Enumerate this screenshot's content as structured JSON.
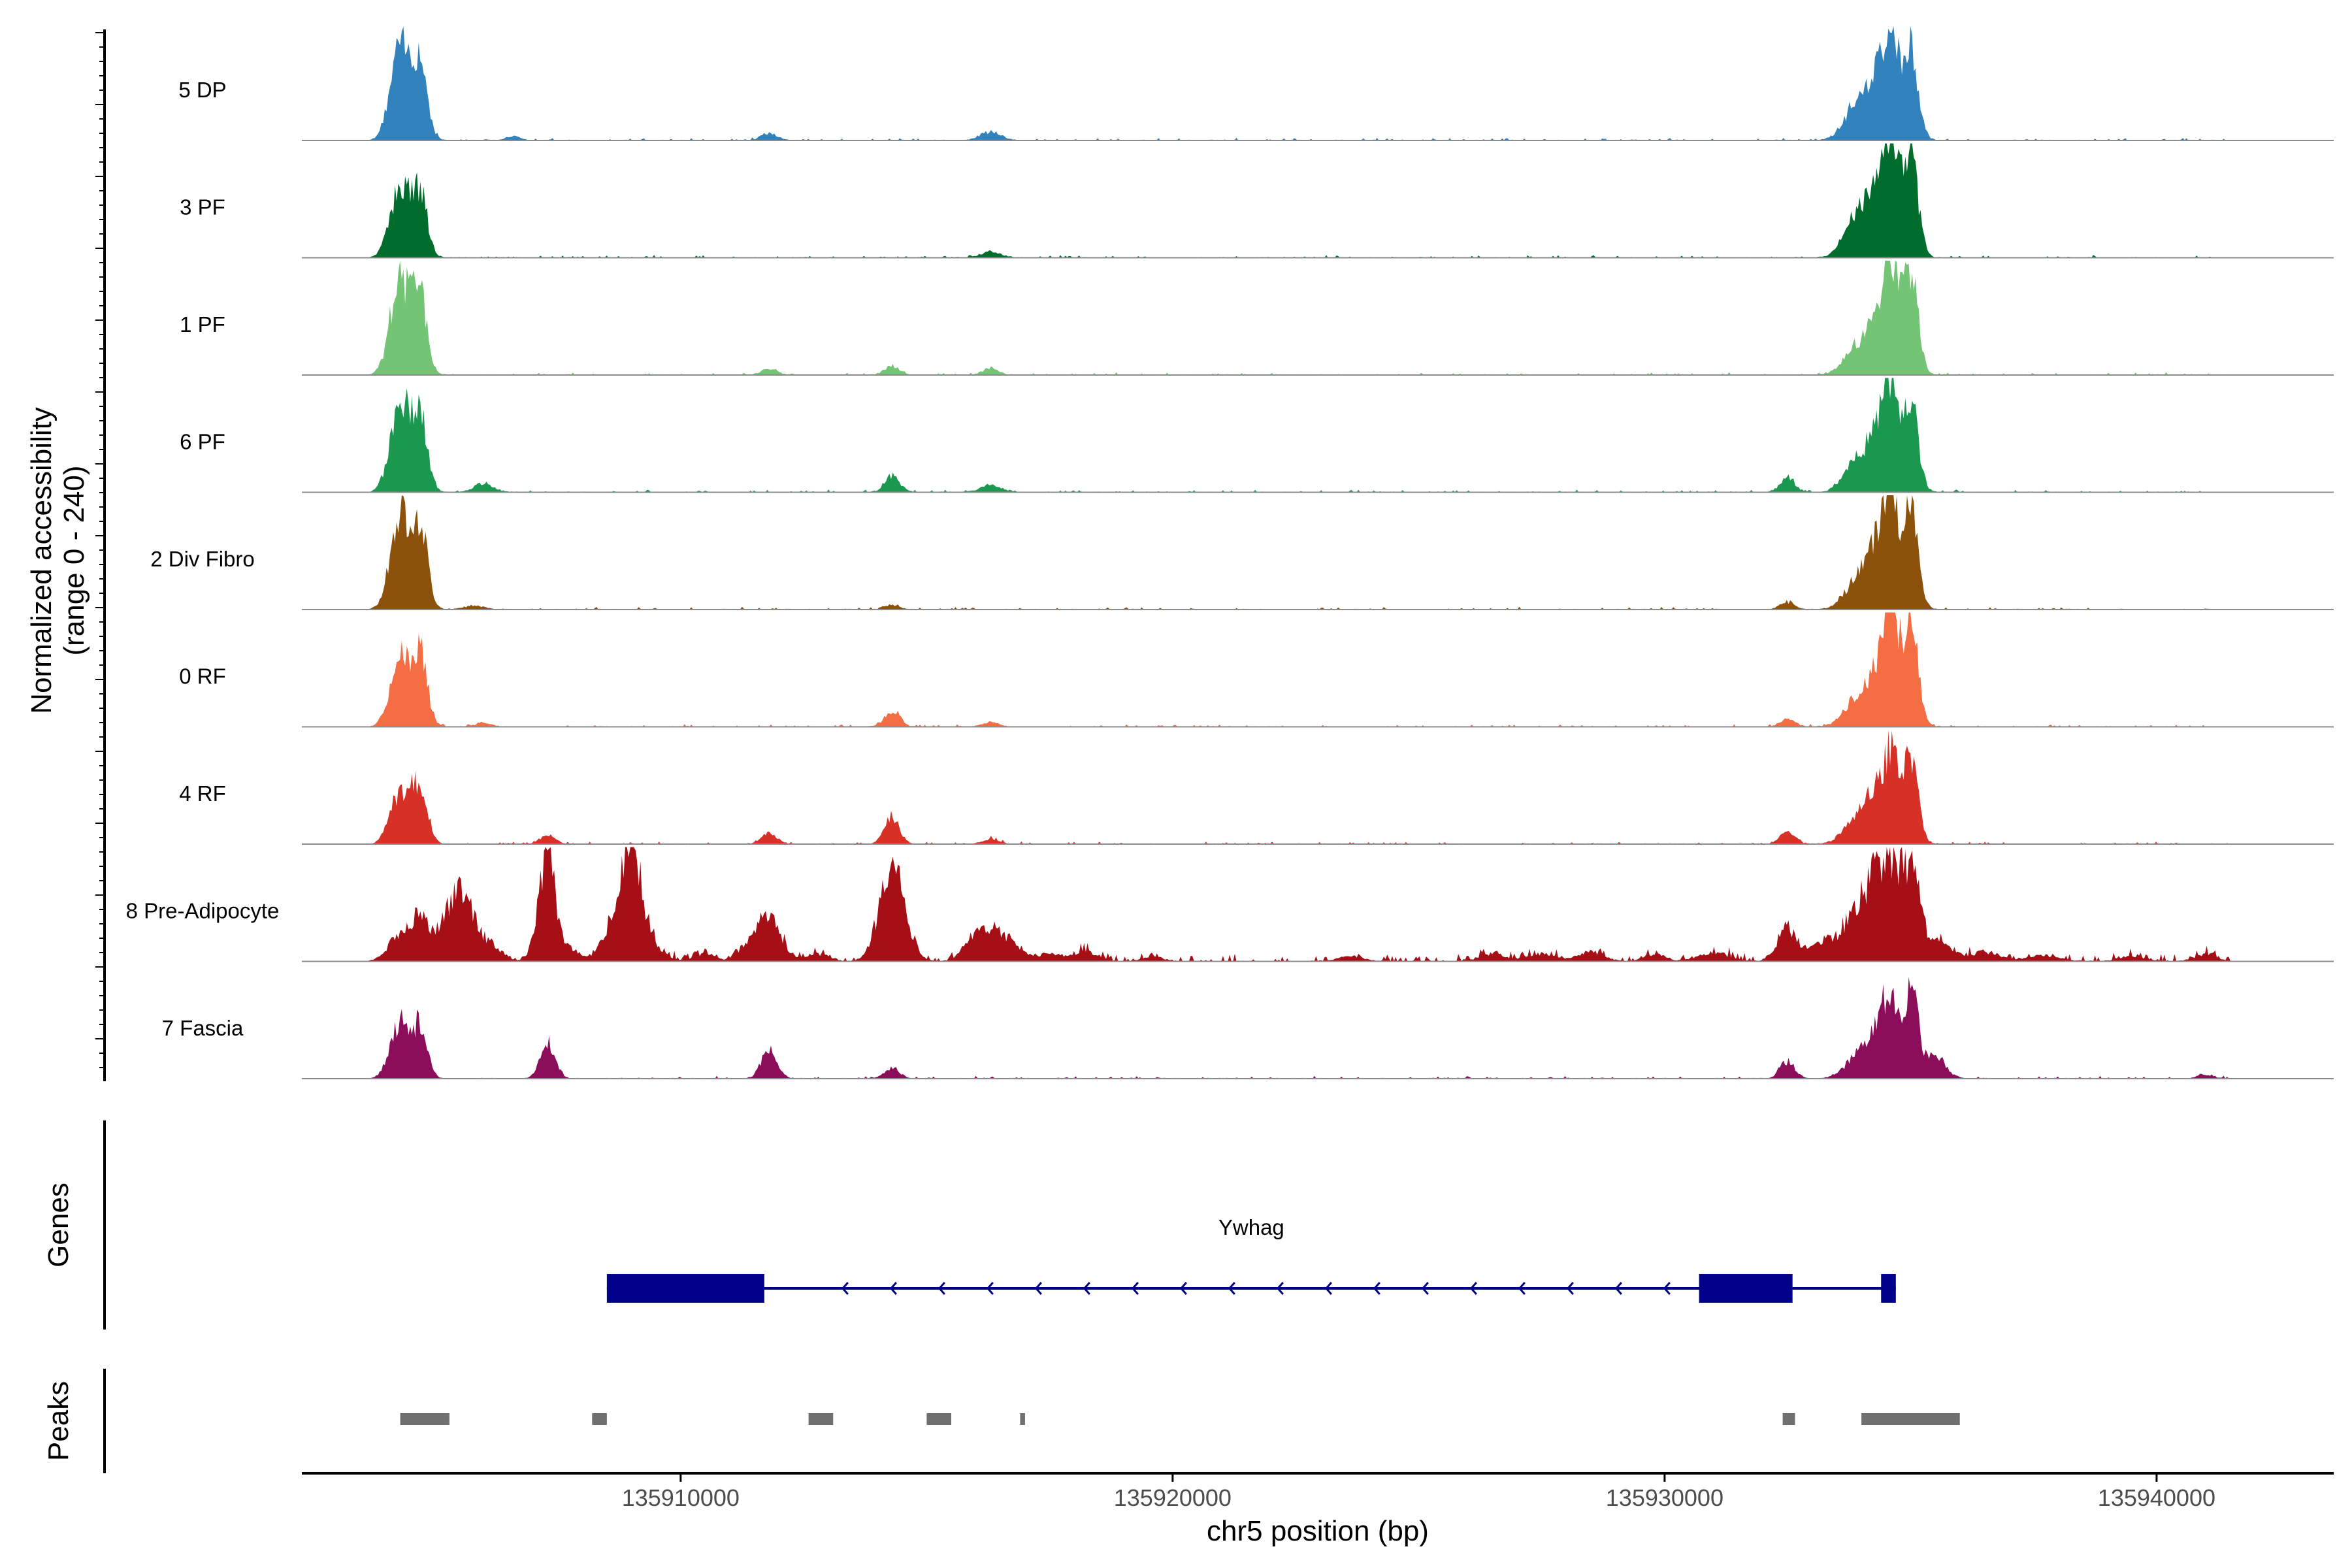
{
  "chart_data": {
    "type": "coverage-track",
    "ylabel_line1": "Normalized accessibility",
    "ylabel_line2": "(range 0 - 240)",
    "xlabel": "chr5 position (bp)",
    "xlim": [
      135902300,
      135943600
    ],
    "x_ticks": [
      135910000,
      135920000,
      135930000,
      135940000
    ],
    "x_tick_labels": [
      "135910000",
      "135920000",
      "135930000",
      "135940000"
    ],
    "ylim": [
      0,
      240
    ],
    "tracks": [
      {
        "name": "5 DP",
        "color": "#3182bd",
        "peaks": [
          [
            135904300,
            200,
            190
          ],
          [
            135904700,
            150,
            160
          ],
          [
            135911800,
            150,
            15
          ],
          [
            135916300,
            200,
            18
          ],
          [
            135906600,
            150,
            8
          ],
          [
            135933900,
            250,
            75
          ],
          [
            135934300,
            200,
            100
          ],
          [
            135934600,
            150,
            220
          ],
          [
            135935000,
            150,
            200
          ]
        ]
      },
      {
        "name": "3 PF",
        "color": "#006d2c",
        "peaks": [
          [
            135904300,
            200,
            150
          ],
          [
            135904700,
            150,
            130
          ],
          [
            135916300,
            200,
            12
          ],
          [
            135933900,
            250,
            80
          ],
          [
            135934300,
            200,
            110
          ],
          [
            135934600,
            150,
            220
          ],
          [
            135935000,
            150,
            215
          ]
        ]
      },
      {
        "name": "1 PF",
        "color": "#74c476",
        "peaks": [
          [
            135904300,
            200,
            200
          ],
          [
            135904700,
            150,
            150
          ],
          [
            135911800,
            150,
            12
          ],
          [
            135914300,
            150,
            18
          ],
          [
            135916300,
            150,
            15
          ],
          [
            135933900,
            250,
            55
          ],
          [
            135934300,
            200,
            95
          ],
          [
            135934600,
            150,
            220
          ],
          [
            135935000,
            150,
            210
          ]
        ]
      },
      {
        "name": "6 PF",
        "color": "#1a9850",
        "peaks": [
          [
            135904300,
            200,
            185
          ],
          [
            135904700,
            150,
            150
          ],
          [
            135906000,
            200,
            18
          ],
          [
            135914300,
            150,
            35
          ],
          [
            135916300,
            200,
            15
          ],
          [
            135932500,
            150,
            30
          ],
          [
            135933900,
            250,
            60
          ],
          [
            135934300,
            200,
            100
          ],
          [
            135934600,
            150,
            210
          ],
          [
            135935000,
            150,
            195
          ]
        ]
      },
      {
        "name": "2 Div Fibro",
        "color": "#8c510a",
        "peaks": [
          [
            135904300,
            200,
            190
          ],
          [
            135904700,
            150,
            170
          ],
          [
            135905800,
            200,
            8
          ],
          [
            135914300,
            150,
            10
          ],
          [
            135932500,
            150,
            15
          ],
          [
            135933900,
            250,
            55
          ],
          [
            135934300,
            200,
            110
          ],
          [
            135934600,
            150,
            220
          ],
          [
            135935000,
            150,
            215
          ]
        ]
      },
      {
        "name": "0 RF",
        "color": "#f46d43",
        "peaks": [
          [
            135904300,
            200,
            140
          ],
          [
            135904700,
            150,
            150
          ],
          [
            135906000,
            150,
            8
          ],
          [
            135914300,
            150,
            35
          ],
          [
            135916300,
            150,
            10
          ],
          [
            135932500,
            150,
            15
          ],
          [
            135933900,
            250,
            55
          ],
          [
            135934300,
            200,
            95
          ],
          [
            135934600,
            150,
            215
          ],
          [
            135935000,
            150,
            220
          ]
        ]
      },
      {
        "name": "4 RF",
        "color": "#d73027",
        "peaks": [
          [
            135904300,
            200,
            110
          ],
          [
            135904700,
            150,
            120
          ],
          [
            135907300,
            150,
            18
          ],
          [
            135911800,
            150,
            22
          ],
          [
            135914300,
            150,
            55
          ],
          [
            135916300,
            150,
            10
          ],
          [
            135932500,
            150,
            25
          ],
          [
            135933900,
            250,
            55
          ],
          [
            135934300,
            200,
            85
          ],
          [
            135934600,
            150,
            165
          ],
          [
            135935000,
            150,
            175
          ]
        ]
      },
      {
        "name": "8 Pre-Adipocyte",
        "color": "#a50f15",
        "peaks": [
          [
            135904300,
            250,
            50
          ],
          [
            135904700,
            200,
            75
          ],
          [
            135905500,
            300,
            150
          ],
          [
            135906200,
            200,
            25
          ],
          [
            135907100,
            150,
            40
          ],
          [
            135907300,
            150,
            200
          ],
          [
            135907700,
            200,
            30
          ],
          [
            135908800,
            300,
            100
          ],
          [
            135909000,
            200,
            160
          ],
          [
            135909300,
            300,
            30
          ],
          [
            135910500,
            200,
            15
          ],
          [
            135911400,
            200,
            30
          ],
          [
            135911800,
            250,
            85
          ],
          [
            135912800,
            200,
            15
          ],
          [
            135914300,
            250,
            195
          ],
          [
            135915900,
            200,
            25
          ],
          [
            135916300,
            300,
            60
          ],
          [
            135916800,
            250,
            22
          ],
          [
            135917500,
            200,
            15
          ],
          [
            135918200,
            250,
            20
          ],
          [
            135919600,
            200,
            10
          ],
          [
            135923600,
            250,
            10
          ],
          [
            135926500,
            250,
            15
          ],
          [
            135927500,
            300,
            15
          ],
          [
            135928500,
            250,
            20
          ],
          [
            135929800,
            200,
            15
          ],
          [
            135931000,
            300,
            18
          ],
          [
            135932500,
            200,
            70
          ],
          [
            135933200,
            250,
            35
          ],
          [
            135933900,
            300,
            90
          ],
          [
            135934300,
            250,
            110
          ],
          [
            135934600,
            200,
            140
          ],
          [
            135935000,
            200,
            180
          ],
          [
            135935600,
            250,
            35
          ],
          [
            135936500,
            300,
            18
          ],
          [
            135937700,
            300,
            12
          ],
          [
            135939500,
            250,
            10
          ],
          [
            135941000,
            200,
            15
          ]
        ]
      },
      {
        "name": "7 Fascia",
        "color": "#8c0d5a",
        "peaks": [
          [
            135904300,
            200,
            115
          ],
          [
            135904700,
            150,
            95
          ],
          [
            135907300,
            150,
            75
          ],
          [
            135911800,
            150,
            65
          ],
          [
            135914300,
            150,
            20
          ],
          [
            135932500,
            150,
            35
          ],
          [
            135933900,
            250,
            40
          ],
          [
            135934300,
            200,
            80
          ],
          [
            135934600,
            150,
            160
          ],
          [
            135935000,
            150,
            180
          ],
          [
            135935500,
            200,
            50
          ],
          [
            135941000,
            150,
            8
          ]
        ]
      }
    ],
    "genes_label": "Genes",
    "gene": {
      "name": "Ywhag",
      "color": "#00008b",
      "strand": "-",
      "start": 135908500,
      "end": 135934700,
      "exons": [
        [
          135908500,
          135911700
        ],
        [
          135930700,
          135932600
        ],
        [
          135934400,
          135934700
        ]
      ]
    },
    "peaks_label": "Peaks",
    "peak_regions": [
      [
        135904300,
        135905300
      ],
      [
        135908200,
        135908500
      ],
      [
        135912600,
        135913100
      ],
      [
        135915000,
        135915500
      ],
      [
        135916900,
        135917000
      ],
      [
        135932400,
        135932650
      ],
      [
        135934000,
        135936000
      ]
    ],
    "peak_color": "#707070"
  }
}
